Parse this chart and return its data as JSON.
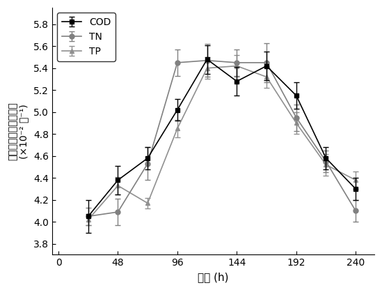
{
  "x": [
    24,
    48,
    72,
    96,
    120,
    144,
    168,
    192,
    216,
    240
  ],
  "COD_y": [
    4.05,
    4.38,
    4.58,
    5.02,
    5.48,
    5.28,
    5.42,
    5.15,
    4.58,
    4.3
  ],
  "COD_err": [
    0.15,
    0.13,
    0.1,
    0.1,
    0.13,
    0.13,
    0.13,
    0.12,
    0.1,
    0.1
  ],
  "TN_y": [
    4.05,
    4.09,
    4.53,
    5.45,
    5.47,
    5.45,
    5.45,
    4.95,
    4.55,
    4.1
  ],
  "TN_err": [
    0.08,
    0.12,
    0.15,
    0.12,
    0.15,
    0.12,
    0.18,
    0.12,
    0.1,
    0.1
  ],
  "TP_y": [
    4.02,
    4.33,
    4.17,
    4.85,
    5.4,
    5.42,
    5.32,
    4.9,
    4.52,
    4.38
  ],
  "TP_err": [
    0.05,
    0.08,
    0.05,
    0.08,
    0.1,
    0.1,
    0.1,
    0.1,
    0.1,
    0.08
  ],
  "COD_color": "#000000",
  "TN_color": "#808080",
  "TP_color": "#909090",
  "xlabel": "时间 (h)",
  "ylabel_main": "污染物去除率经济效益",
  "ylabel_unit": "(×10⁻² 元⁻¹)",
  "xticks": [
    0,
    48,
    96,
    144,
    192,
    240
  ],
  "yticks": [
    3.8,
    4.0,
    4.2,
    4.4,
    4.6,
    4.8,
    5.0,
    5.2,
    5.4,
    5.6,
    5.8
  ],
  "ylim": [
    3.7,
    5.95
  ],
  "xlim": [
    -5,
    255
  ]
}
